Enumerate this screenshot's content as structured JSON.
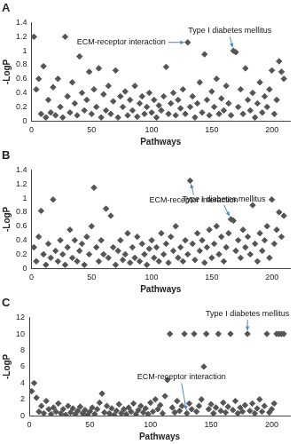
{
  "chart_data": [
    {
      "type": "scatter",
      "title": "A",
      "x_label": "Pathways",
      "y_label": "-LogP",
      "color": "#555555",
      "marker": "diamond",
      "grid": false,
      "xlim": [
        0,
        215
      ],
      "xticks": [
        0,
        50,
        100,
        150,
        200
      ],
      "ylim": [
        0,
        1.4
      ],
      "yticks": [
        0,
        0.2,
        0.4,
        0.6,
        0.8,
        1,
        1.2,
        1.4
      ],
      "x": [
        2,
        4,
        6,
        8,
        10,
        12,
        14,
        16,
        18,
        20,
        22,
        24,
        26,
        28,
        30,
        32,
        34,
        36,
        38,
        40,
        42,
        44,
        46,
        48,
        50,
        52,
        54,
        56,
        58,
        60,
        62,
        64,
        66,
        68,
        70,
        72,
        74,
        76,
        78,
        80,
        82,
        84,
        86,
        88,
        90,
        92,
        94,
        96,
        98,
        100,
        102,
        104,
        106,
        108,
        110,
        112,
        114,
        116,
        118,
        120,
        122,
        124,
        126,
        128,
        130,
        132,
        134,
        136,
        138,
        140,
        142,
        144,
        146,
        148,
        150,
        152,
        154,
        156,
        158,
        160,
        162,
        164,
        166,
        168,
        170,
        172,
        174,
        176,
        178,
        180,
        182,
        184,
        186,
        188,
        190,
        192,
        194,
        196,
        198,
        200,
        202,
        204,
        206,
        208,
        210
      ],
      "values": [
        1.2,
        0.45,
        0.6,
        0.1,
        0.78,
        0.05,
        0.3,
        0.12,
        0.48,
        0.08,
        0.6,
        0.2,
        0.05,
        1.2,
        0.35,
        0.12,
        0.55,
        0.25,
        0.08,
        0.92,
        0.4,
        0.15,
        0.3,
        0.7,
        0.1,
        0.45,
        0.2,
        0.75,
        0.05,
        0.38,
        0.15,
        0.5,
        0.1,
        0.28,
        0.72,
        0.05,
        0.35,
        0.2,
        0.42,
        0.08,
        0.3,
        0.15,
        0.5,
        0.06,
        0.25,
        0.35,
        0.1,
        0.2,
        0.4,
        0.12,
        0.3,
        0.05,
        0.22,
        0.15,
        0.35,
        0.77,
        0.1,
        0.25,
        0.4,
        0.08,
        0.3,
        0.18,
        0.45,
        0.1,
        1.12,
        0.2,
        0.35,
        0.05,
        0.25,
        0.55,
        0.12,
        0.95,
        0.3,
        0.08,
        0.42,
        0.2,
        0.6,
        0.1,
        0.32,
        0.15,
        0.5,
        0.25,
        0.08,
        1.0,
        0.98,
        0.2,
        0.45,
        0.1,
        0.75,
        0.3,
        0.15,
        0.4,
        0.05,
        0.25,
        0.55,
        0.12,
        0.35,
        0.2,
        0.45,
        0.72,
        0.1,
        0.3,
        0.85,
        0.7,
        0.6
      ],
      "annotations": [
        {
          "text": "ECM-receptor interaction",
          "x": 130,
          "y": 1.12
        },
        {
          "text": "Type I diabetes mellitus",
          "x": 168,
          "y": 1.0
        }
      ]
    },
    {
      "type": "scatter",
      "title": "B",
      "x_label": "Pathways",
      "y_label": "-LogP",
      "color": "#555555",
      "marker": "diamond",
      "grid": false,
      "xlim": [
        0,
        215
      ],
      "xticks": [
        0,
        50,
        100,
        150,
        200
      ],
      "ylim": [
        0,
        1.4
      ],
      "yticks": [
        0,
        0.2,
        0.4,
        0.6,
        0.8,
        1,
        1.2,
        1.4
      ],
      "x": [
        2,
        4,
        6,
        8,
        10,
        12,
        14,
        16,
        18,
        20,
        22,
        24,
        26,
        28,
        30,
        32,
        34,
        36,
        38,
        40,
        42,
        44,
        46,
        48,
        50,
        52,
        54,
        56,
        58,
        60,
        62,
        64,
        66,
        68,
        70,
        72,
        74,
        76,
        78,
        80,
        82,
        84,
        86,
        88,
        90,
        92,
        94,
        96,
        98,
        100,
        102,
        104,
        106,
        108,
        110,
        112,
        114,
        116,
        118,
        120,
        122,
        124,
        126,
        128,
        130,
        132,
        134,
        136,
        138,
        140,
        142,
        144,
        146,
        148,
        150,
        152,
        154,
        156,
        158,
        160,
        162,
        164,
        166,
        168,
        170,
        172,
        174,
        176,
        178,
        180,
        182,
        184,
        186,
        188,
        190,
        192,
        194,
        196,
        198,
        200,
        202,
        204,
        206,
        208,
        210
      ],
      "values": [
        0.3,
        0.1,
        0.45,
        0.82,
        0.2,
        0.05,
        0.35,
        0.15,
        0.98,
        0.25,
        0.1,
        0.4,
        0.2,
        0.05,
        0.3,
        0.55,
        0.15,
        0.4,
        0.1,
        0.25,
        0.35,
        0.05,
        0.45,
        0.2,
        0.6,
        1.15,
        0.3,
        0.1,
        0.4,
        0.2,
        0.85,
        0.15,
        0.75,
        0.3,
        0.05,
        0.25,
        0.4,
        0.12,
        0.2,
        0.5,
        0.08,
        0.3,
        0.15,
        0.45,
        0.1,
        0.35,
        0.2,
        0.05,
        0.28,
        0.4,
        0.15,
        0.3,
        0.1,
        0.5,
        0.2,
        0.35,
        0.08,
        0.45,
        0.25,
        0.6,
        0.15,
        0.3,
        0.1,
        0.4,
        0.2,
        1.25,
        0.35,
        0.12,
        0.5,
        0.25,
        0.4,
        0.08,
        0.3,
        0.55,
        0.15,
        0.35,
        0.6,
        0.2,
        0.45,
        0.1,
        0.3,
        0.5,
        0.7,
        0.68,
        0.25,
        0.4,
        0.15,
        0.55,
        0.3,
        0.45,
        0.2,
        0.9,
        0.35,
        0.1,
        0.5,
        0.25,
        0.4,
        0.6,
        0.15,
        0.98,
        0.35,
        0.55,
        0.8,
        0.45,
        0.75
      ],
      "annotations": [
        {
          "text": "ECM-receptor interaction",
          "x": 132,
          "y": 1.25
        },
        {
          "text": "Type I diabetes mellitus",
          "x": 166,
          "y": 0.7
        }
      ]
    },
    {
      "type": "scatter",
      "title": "C",
      "x_label": "Pathways",
      "y_label": "-LogP",
      "color": "#555555",
      "marker": "diamond",
      "grid": false,
      "xlim": [
        0,
        215
      ],
      "xticks": [
        0,
        50,
        100,
        150,
        200
      ],
      "ylim": [
        0,
        12
      ],
      "yticks": [
        0,
        2,
        4,
        6,
        8,
        10,
        12
      ],
      "x": [
        2,
        4,
        6,
        8,
        10,
        12,
        14,
        16,
        18,
        20,
        22,
        24,
        26,
        28,
        30,
        32,
        34,
        36,
        38,
        40,
        42,
        44,
        46,
        48,
        50,
        52,
        54,
        56,
        58,
        60,
        62,
        64,
        66,
        68,
        70,
        72,
        74,
        76,
        78,
        80,
        82,
        84,
        86,
        88,
        90,
        92,
        94,
        96,
        98,
        100,
        102,
        104,
        106,
        108,
        110,
        112,
        114,
        116,
        118,
        120,
        122,
        124,
        126,
        128,
        130,
        132,
        134,
        136,
        138,
        140,
        142,
        144,
        146,
        148,
        150,
        152,
        154,
        156,
        158,
        160,
        162,
        164,
        166,
        168,
        170,
        172,
        174,
        176,
        178,
        180,
        182,
        184,
        186,
        188,
        190,
        192,
        194,
        196,
        198,
        200,
        202,
        204,
        206,
        208,
        210
      ],
      "values": [
        3.0,
        4.0,
        2.2,
        0.5,
        1.2,
        0.3,
        1.8,
        0.8,
        0.2,
        1.0,
        0.5,
        1.5,
        0.3,
        0.8,
        0.1,
        1.2,
        0.4,
        0.9,
        0.2,
        0.6,
        1.1,
        0.3,
        0.7,
        0.1,
        0.5,
        1.0,
        0.2,
        0.8,
        1.6,
        2.7,
        0.4,
        1.2,
        0.3,
        0.9,
        0.1,
        0.6,
        1.4,
        0.3,
        0.8,
        0.2,
        1.0,
        0.5,
        1.5,
        0.2,
        0.7,
        1.2,
        0.4,
        0.9,
        0.2,
        1.6,
        0.5,
        2.0,
        0.8,
        1.3,
        0.3,
        2.4,
        4.4,
        10,
        1.0,
        0.4,
        1.8,
        0.6,
        1.2,
        10,
        0.3,
        1.5,
        0.8,
        10,
        0.5,
        1.2,
        2.0,
        6.0,
        10,
        0.8,
        1.4,
        0.3,
        1.0,
        10,
        0.6,
        1.6,
        0.4,
        1.1,
        10,
        0.7,
        1.8,
        0.3,
        1.0,
        0.5,
        1.3,
        10,
        0.6,
        1.5,
        0.3,
        0.9,
        2.0,
        0.5,
        1.2,
        10,
        0.4,
        0.8,
        1.5,
        10,
        10,
        10,
        10
      ],
      "annotations": [
        {
          "text": "Type I diabetes mellitus",
          "x": 180,
          "y": 10
        },
        {
          "text": "ECM-receptor interaction",
          "x": 130,
          "y": 0.3
        }
      ]
    }
  ]
}
